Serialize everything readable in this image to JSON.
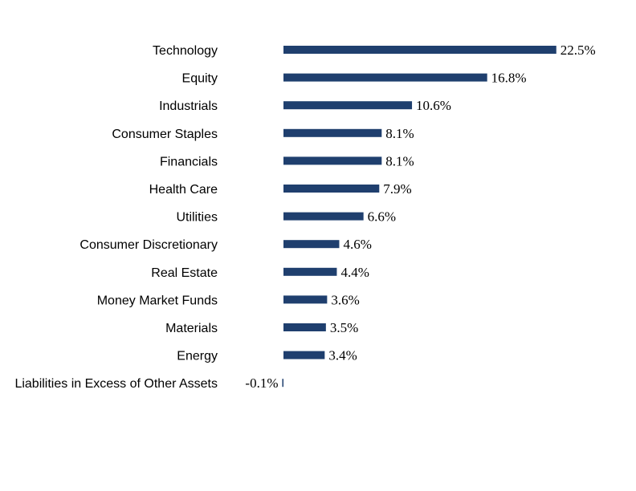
{
  "chart_data": {
    "type": "bar",
    "orientation": "horizontal",
    "title": "",
    "xlabel": "",
    "ylabel": "",
    "grid": false,
    "legend": "none",
    "bar_color": "#1f3f6e",
    "categories": [
      "Technology",
      "Equity",
      "Industrials",
      "Consumer Staples",
      "Financials",
      "Health Care",
      "Utilities",
      "Consumer Discretionary",
      "Real Estate",
      "Money Market Funds",
      "Materials",
      "Energy",
      "Liabilities in Excess of Other Assets"
    ],
    "values": [
      22.5,
      16.8,
      10.6,
      8.1,
      8.1,
      7.9,
      6.6,
      4.6,
      4.4,
      3.6,
      3.5,
      3.4,
      -0.1
    ],
    "value_labels": [
      "22.5%",
      "16.8%",
      "10.6%",
      "8.1%",
      "8.1%",
      "7.9%",
      "6.6%",
      "4.6%",
      "4.4%",
      "3.6%",
      "3.5%",
      "3.4%",
      "-0.1%"
    ]
  }
}
